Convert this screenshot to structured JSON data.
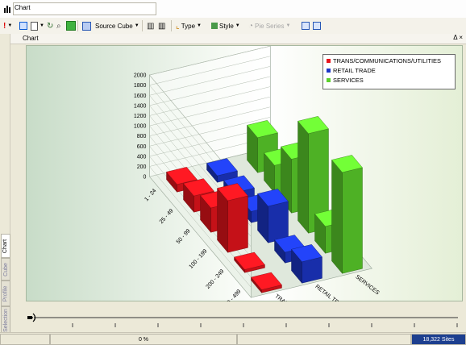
{
  "window": {
    "title": "Chart"
  },
  "toolbar": {
    "source_cube_label": "Source Cube",
    "type_label": "Type",
    "style_label": "Style",
    "pie_series_label": "Pie Series"
  },
  "chart_panel": {
    "label": "Chart",
    "pin": "Δ ×"
  },
  "left_tabs": [
    "Chart",
    "Cube",
    "Profile",
    "Selection"
  ],
  "legend": [
    {
      "label": "TRANS/COMMUNICATIONS/UTILITIES",
      "color": "#e8141c"
    },
    {
      "label": "RETAIL TRADE",
      "color": "#1c36c8"
    },
    {
      "label": "SERVICES",
      "color": "#5cd02c"
    }
  ],
  "status": {
    "progress": "0 %",
    "sites": "18,322 Sites"
  },
  "chart_data": {
    "type": "bar",
    "subtype": "3d-grouped-bar",
    "categories": [
      "1 - 24",
      "25 - 49",
      "50 - 99",
      "100 - 199",
      "200 - 249",
      "250 - 499"
    ],
    "y_ticks": [
      "0",
      "200",
      "400",
      "600",
      "800",
      "1000",
      "1200",
      "1400",
      "1600",
      "1800",
      "2000"
    ],
    "ylim": [
      0,
      2000
    ],
    "depth_labels": [
      "TRANS/COMMUNI...",
      "RETAIL TRADE",
      "SERVICES"
    ],
    "series": [
      {
        "name": "TRANS/COMMUNICATIONS/UTILITIES",
        "values": [
          150,
          320,
          480,
          1020,
          60,
          60
        ]
      },
      {
        "name": "RETAIL TRADE",
        "values": [
          130,
          190,
          220,
          720,
          210,
          420
        ]
      },
      {
        "name": "SERVICES",
        "values": [
          690,
          540,
          1060,
          1960,
          530,
          1990
        ]
      }
    ],
    "grid": true,
    "legend_position": "top-right"
  }
}
